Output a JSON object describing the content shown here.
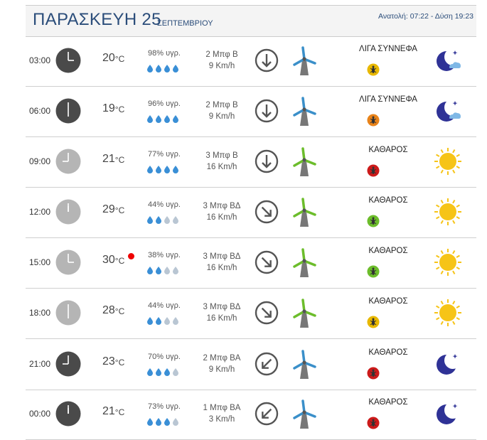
{
  "header": {
    "day": "ΠΑΡΑΣΚΕΥΗ 25",
    "month": "ΣΕΠΤΕΜΒΡΙΟΥ",
    "sun": "Ανατολή: 07:22 - Δύση 19:23"
  },
  "rows": [
    {
      "time": "03:00",
      "temp": "20",
      "hum": "98% υγρ.",
      "drops": 4,
      "wind_b": "2 Μπφ Β",
      "wind_k": "9 Km/h",
      "dir": "down",
      "night": true,
      "cond": "ΛΙΓΑ ΣΥΝΝΕΦΑ",
      "bug_color": "#e8b800",
      "sky": "moon-cloud",
      "mill_color": "#3a8fc9",
      "hot": false
    },
    {
      "time": "06:00",
      "temp": "19",
      "hum": "96% υγρ.",
      "drops": 4,
      "wind_b": "2 Μπφ Β",
      "wind_k": "9 Km/h",
      "dir": "down",
      "night": true,
      "cond": "ΛΙΓΑ ΣΥΝΝΕΦΑ",
      "bug_color": "#e8831a",
      "sky": "moon-cloud",
      "mill_color": "#3a8fc9",
      "hot": false
    },
    {
      "time": "09:00",
      "temp": "21",
      "hum": "77% υγρ.",
      "drops": 4,
      "wind_b": "3 Μπφ Β",
      "wind_k": "16 Km/h",
      "dir": "down",
      "night": false,
      "cond": "ΚΑΘΑΡΟΣ",
      "bug_color": "#cc1a1a",
      "sky": "sun",
      "mill_color": "#6cbd2b",
      "hot": false
    },
    {
      "time": "12:00",
      "temp": "29",
      "hum": "44% υγρ.",
      "drops": 2,
      "wind_b": "3 Μπφ ΒΔ",
      "wind_k": "16 Km/h",
      "dir": "downright",
      "night": false,
      "cond": "ΚΑΘΑΡΟΣ",
      "bug_color": "#6cbd2b",
      "sky": "sun",
      "mill_color": "#6cbd2b",
      "hot": false
    },
    {
      "time": "15:00",
      "temp": "30",
      "hum": "38% υγρ.",
      "drops": 2,
      "wind_b": "3 Μπφ ΒΔ",
      "wind_k": "16 Km/h",
      "dir": "downright",
      "night": false,
      "cond": "ΚΑΘΑΡΟΣ",
      "bug_color": "#6cbd2b",
      "sky": "sun",
      "mill_color": "#6cbd2b",
      "hot": true
    },
    {
      "time": "18:00",
      "temp": "28",
      "hum": "44% υγρ.",
      "drops": 2,
      "wind_b": "3 Μπφ ΒΔ",
      "wind_k": "16 Km/h",
      "dir": "downright",
      "night": false,
      "cond": "ΚΑΘΑΡΟΣ",
      "bug_color": "#e8b800",
      "sky": "sun",
      "mill_color": "#6cbd2b",
      "hot": false
    },
    {
      "time": "21:00",
      "temp": "23",
      "hum": "70% υγρ.",
      "drops": 3,
      "wind_b": "2 Μπφ ΒΑ",
      "wind_k": "9 Km/h",
      "dir": "downleft",
      "night": true,
      "cond": "ΚΑΘΑΡΟΣ",
      "bug_color": "#cc1a1a",
      "sky": "moon",
      "mill_color": "#3a8fc9",
      "hot": false
    },
    {
      "time": "00:00",
      "temp": "21",
      "hum": "73% υγρ.",
      "drops": 3,
      "wind_b": "1 Μπφ ΒΑ",
      "wind_k": "3 Km/h",
      "dir": "downleft",
      "night": true,
      "cond": "ΚΑΘΑΡΟΣ",
      "bug_color": "#cc1a1a",
      "sky": "moon",
      "mill_color": "#3a8fc9",
      "hot": false
    }
  ],
  "units": {
    "temp": "°C"
  }
}
